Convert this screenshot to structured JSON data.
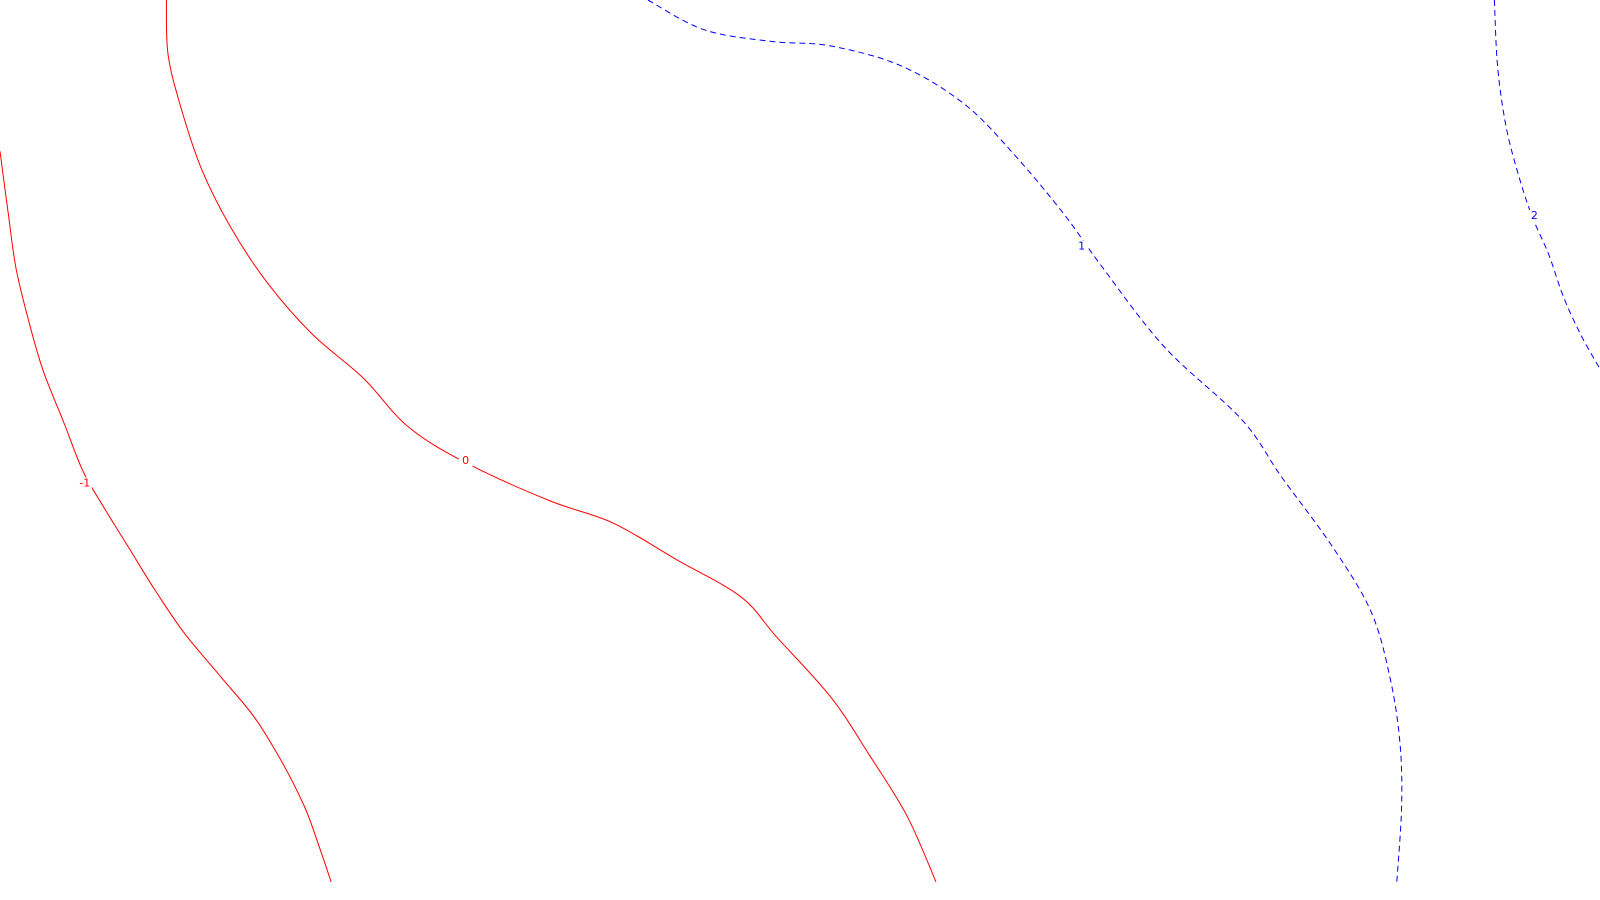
{
  "chart_data": {
    "type": "contour",
    "title": "",
    "xlabel": "",
    "ylabel": "",
    "grid": false,
    "levels": [
      {
        "value": -1,
        "label": "-1",
        "color": "#ff0000",
        "style": "solid",
        "points": [
          [
            0.0,
            0.168
          ],
          [
            0.005,
            0.235
          ],
          [
            0.01,
            0.298
          ],
          [
            0.018,
            0.357
          ],
          [
            0.027,
            0.412
          ],
          [
            0.04,
            0.47
          ],
          [
            0.052,
            0.524
          ],
          [
            0.065,
            0.564
          ],
          [
            0.081,
            0.61
          ],
          [
            0.097,
            0.656
          ],
          [
            0.115,
            0.703
          ],
          [
            0.138,
            0.752
          ],
          [
            0.159,
            0.797
          ],
          [
            0.176,
            0.846
          ],
          [
            0.19,
            0.895
          ],
          [
            0.198,
            0.933
          ],
          [
            0.207,
            0.98
          ]
        ]
      },
      {
        "value": 0,
        "label": "0",
        "color": "#ff0000",
        "style": "solid",
        "points": [
          [
            0.104,
            0.0
          ],
          [
            0.105,
            0.06
          ],
          [
            0.113,
            0.119
          ],
          [
            0.126,
            0.188
          ],
          [
            0.144,
            0.252
          ],
          [
            0.167,
            0.314
          ],
          [
            0.195,
            0.371
          ],
          [
            0.227,
            0.42
          ],
          [
            0.255,
            0.474
          ],
          [
            0.291,
            0.514
          ],
          [
            0.343,
            0.556
          ],
          [
            0.383,
            0.581
          ],
          [
            0.423,
            0.622
          ],
          [
            0.463,
            0.663
          ],
          [
            0.485,
            0.707
          ],
          [
            0.519,
            0.774
          ],
          [
            0.543,
            0.838
          ],
          [
            0.567,
            0.907
          ],
          [
            0.585,
            0.98
          ]
        ]
      },
      {
        "value": 1,
        "label": "1",
        "color": "#0000ff",
        "style": "dashed",
        "points": [
          [
            0.405,
            0.0
          ],
          [
            0.44,
            0.033
          ],
          [
            0.482,
            0.046
          ],
          [
            0.519,
            0.051
          ],
          [
            0.563,
            0.073
          ],
          [
            0.603,
            0.116
          ],
          [
            0.635,
            0.174
          ],
          [
            0.665,
            0.238
          ],
          [
            0.689,
            0.297
          ],
          [
            0.728,
            0.386
          ],
          [
            0.776,
            0.466
          ],
          [
            0.801,
            0.53
          ],
          [
            0.833,
            0.608
          ],
          [
            0.857,
            0.68
          ],
          [
            0.869,
            0.755
          ],
          [
            0.875,
            0.826
          ],
          [
            0.876,
            0.896
          ],
          [
            0.873,
            0.98
          ]
        ]
      },
      {
        "value": 2,
        "label": "2",
        "color": "#0000ff",
        "style": "dashed",
        "points": [
          [
            0.934,
            0.0
          ],
          [
            0.936,
            0.074
          ],
          [
            0.941,
            0.138
          ],
          [
            0.948,
            0.188
          ],
          [
            0.957,
            0.238
          ],
          [
            0.968,
            0.283
          ],
          [
            0.977,
            0.329
          ],
          [
            0.988,
            0.372
          ],
          [
            1.0,
            0.41
          ]
        ]
      }
    ],
    "labels": [
      {
        "text": "-1",
        "level": -1,
        "at": [
          0.053,
          0.537
        ]
      },
      {
        "text": "0",
        "level": 0,
        "at": [
          0.291,
          0.512
        ]
      },
      {
        "text": "1",
        "level": 1,
        "at": [
          0.676,
          0.274
        ]
      },
      {
        "text": "2",
        "level": 2,
        "at": [
          0.959,
          0.24
        ]
      }
    ]
  }
}
